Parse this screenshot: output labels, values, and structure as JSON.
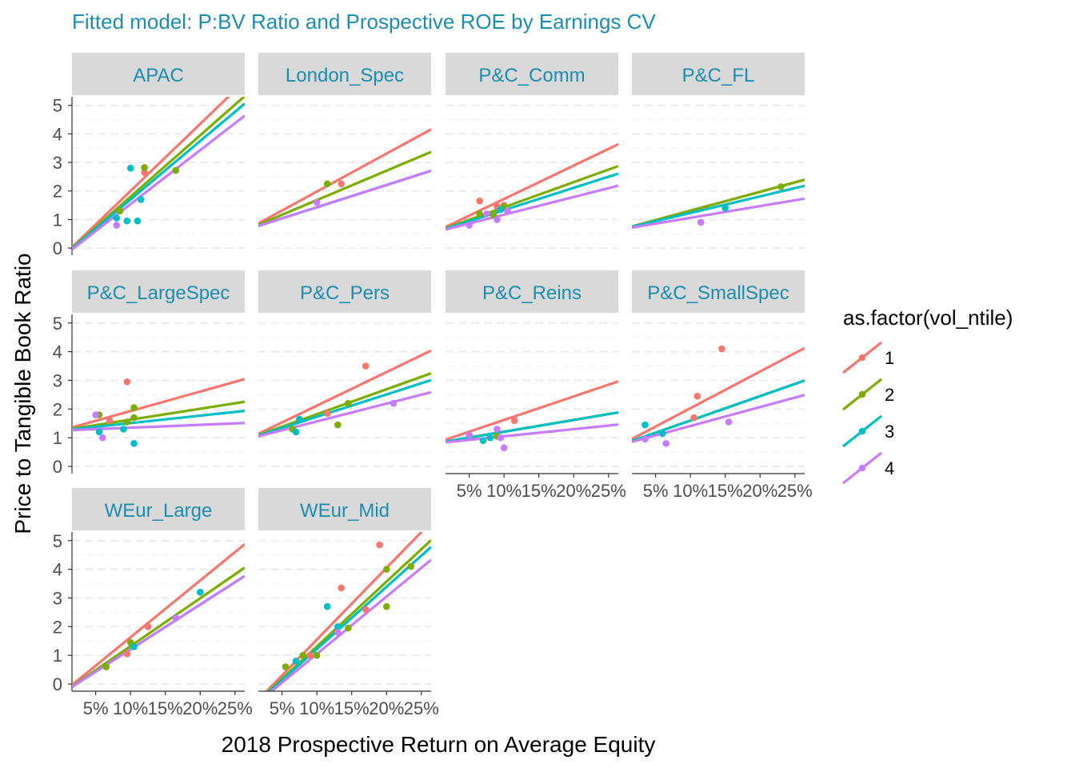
{
  "chart_data": {
    "type": "faceted line + scatter",
    "title": "Fitted model: P:BV Ratio and Prospective ROE by Earnings CV",
    "xlabel": "2018 Prospective Return on Average Equity",
    "ylabel": "Price to Tangible Book Ratio",
    "xlim": [
      0.016,
      0.264
    ],
    "ylim": [
      -0.25,
      5.3
    ],
    "x_ticks": [
      {
        "value": 0.05,
        "label": "5%"
      },
      {
        "value": 0.1,
        "label": "10%"
      },
      {
        "value": 0.15,
        "label": "15%"
      },
      {
        "value": 0.2,
        "label": "20%"
      },
      {
        "value": 0.25,
        "label": "25%"
      }
    ],
    "y_ticks": [
      {
        "value": 0,
        "label": "0"
      },
      {
        "value": 1,
        "label": "1"
      },
      {
        "value": 2,
        "label": "2"
      },
      {
        "value": 3,
        "label": "3"
      },
      {
        "value": 4,
        "label": "4"
      },
      {
        "value": 5,
        "label": "5"
      }
    ],
    "grid": true,
    "legend": {
      "title": "as.factor(vol_ntile)",
      "position": "right",
      "entries": [
        {
          "label": "1",
          "color": "#F8766D"
        },
        {
          "label": "2",
          "color": "#7CAE00"
        },
        {
          "label": "3",
          "color": "#00BFC4"
        },
        {
          "label": "4",
          "color": "#C77CFF"
        }
      ]
    },
    "panels": [
      {
        "name": "APAC",
        "lines": [
          [
            -0.35,
            23.5
          ],
          [
            -0.35,
            21.5
          ],
          [
            -0.35,
            20.5
          ],
          [
            -0.35,
            18.9
          ]
        ],
        "points": [
          [
            1,
            0.12,
            2.65
          ],
          [
            2,
            0.085,
            1.3
          ],
          [
            2,
            0.12,
            2.82
          ],
          [
            2,
            0.165,
            2.72
          ],
          [
            3,
            0.08,
            1.05
          ],
          [
            3,
            0.095,
            0.95
          ],
          [
            3,
            0.11,
            0.95
          ],
          [
            3,
            0.1,
            2.8
          ],
          [
            3,
            0.115,
            1.7
          ],
          [
            4,
            0.08,
            0.8
          ]
        ]
      },
      {
        "name": "London_Spec",
        "lines": [
          [
            0.65,
            13.3
          ],
          [
            0.65,
            10.3
          ],
          [
            0.65,
            7.8
          ],
          [
            0.65,
            7.8
          ]
        ],
        "points": [
          [
            1,
            0.135,
            2.25
          ],
          [
            2,
            0.115,
            2.25
          ],
          [
            4,
            0.1,
            1.6
          ]
        ]
      },
      {
        "name": "P&C_Comm",
        "lines": [
          [
            0.55,
            11.7
          ],
          [
            0.55,
            8.8
          ],
          [
            0.55,
            7.8
          ],
          [
            0.55,
            6.2
          ]
        ],
        "points": [
          [
            1,
            0.065,
            1.65
          ],
          [
            1,
            0.09,
            1.45
          ],
          [
            1,
            0.1,
            1.5
          ],
          [
            2,
            0.065,
            1.2
          ],
          [
            2,
            0.085,
            1.15
          ],
          [
            2,
            0.1,
            1.45
          ],
          [
            3,
            0.095,
            1.35
          ],
          [
            4,
            0.05,
            0.8
          ],
          [
            4,
            0.075,
            1.2
          ],
          [
            4,
            0.09,
            1.0
          ],
          [
            4,
            0.105,
            1.3
          ]
        ]
      },
      {
        "name": "P&C_FL",
        "lines": [
          [
            0.65,
            6.6
          ],
          [
            0.65,
            6.6
          ],
          [
            0.65,
            5.8
          ],
          [
            0.65,
            4.1
          ]
        ],
        "points": [
          [
            2,
            0.23,
            2.15
          ],
          [
            3,
            0.15,
            1.4
          ],
          [
            4,
            0.115,
            0.9
          ]
        ]
      },
      {
        "name": "P&C_LargeSpec",
        "lines": [
          [
            1.25,
            6.8
          ],
          [
            1.25,
            3.8
          ],
          [
            1.25,
            2.6
          ],
          [
            1.25,
            1.0
          ]
        ],
        "points": [
          [
            1,
            0.07,
            1.6
          ],
          [
            1,
            0.095,
            2.95
          ],
          [
            2,
            0.055,
            1.8
          ],
          [
            2,
            0.105,
            2.05
          ],
          [
            2,
            0.095,
            1.55
          ],
          [
            2,
            0.105,
            1.7
          ],
          [
            3,
            0.055,
            1.2
          ],
          [
            3,
            0.09,
            1.3
          ],
          [
            3,
            0.105,
            0.8
          ],
          [
            4,
            0.05,
            1.8
          ],
          [
            4,
            0.06,
            1.0
          ]
        ]
      },
      {
        "name": "P&C_Pers",
        "lines": [
          [
            0.95,
            11.7
          ],
          [
            0.95,
            8.7
          ],
          [
            0.95,
            7.8
          ],
          [
            0.95,
            6.2
          ]
        ],
        "points": [
          [
            1,
            0.115,
            1.85
          ],
          [
            1,
            0.17,
            3.5
          ],
          [
            2,
            0.065,
            1.3
          ],
          [
            2,
            0.13,
            1.45
          ],
          [
            2,
            0.145,
            2.2
          ],
          [
            3,
            0.07,
            1.2
          ],
          [
            3,
            0.075,
            1.65
          ],
          [
            4,
            0.21,
            2.2
          ]
        ]
      },
      {
        "name": "P&C_Reins",
        "lines": [
          [
            0.8,
            8.2
          ],
          [
            0.8,
            4.1
          ],
          [
            0.8,
            4.1
          ],
          [
            0.8,
            2.5
          ]
        ],
        "points": [
          [
            1,
            0.115,
            1.6
          ],
          [
            2,
            0.09,
            1.05
          ],
          [
            3,
            0.07,
            0.9
          ],
          [
            3,
            0.08,
            1.0
          ],
          [
            4,
            0.05,
            1.1
          ],
          [
            4,
            0.09,
            1.3
          ],
          [
            4,
            0.095,
            1.0
          ],
          [
            4,
            0.1,
            0.65
          ]
        ]
      },
      {
        "name": "P&C_SmallSpec",
        "lines": [
          [
            0.75,
            12.8
          ],
          [
            0.75,
            8.5
          ],
          [
            0.75,
            8.5
          ],
          [
            0.75,
            6.6
          ]
        ],
        "points": [
          [
            1,
            0.105,
            1.7
          ],
          [
            1,
            0.11,
            2.45
          ],
          [
            1,
            0.145,
            4.1
          ],
          [
            3,
            0.035,
            1.45
          ],
          [
            3,
            0.06,
            1.15
          ],
          [
            4,
            0.035,
            0.95
          ],
          [
            4,
            0.065,
            0.8
          ],
          [
            4,
            0.155,
            1.55
          ]
        ]
      },
      {
        "name": "WEur_Large",
        "lines": [
          [
            -0.35,
            19.8
          ],
          [
            -0.35,
            16.7
          ],
          [
            -0.35,
            15.6
          ],
          [
            -0.35,
            15.6
          ]
        ],
        "points": [
          [
            1,
            0.095,
            1.05
          ],
          [
            1,
            0.125,
            2.0
          ],
          [
            2,
            0.065,
            0.6
          ],
          [
            2,
            0.1,
            1.45
          ],
          [
            3,
            0.105,
            1.3
          ],
          [
            3,
            0.2,
            3.2
          ],
          [
            4,
            0.165,
            2.3
          ]
        ]
      },
      {
        "name": "WEur_Mid",
        "lines": [
          [
            -0.95,
            25.0
          ],
          [
            -0.95,
            22.6
          ],
          [
            -0.95,
            21.7
          ],
          [
            -0.95,
            20.0
          ]
        ],
        "points": [
          [
            1,
            0.09,
            1.0
          ],
          [
            1,
            0.135,
            3.35
          ],
          [
            1,
            0.19,
            4.85
          ],
          [
            1,
            0.17,
            2.6
          ],
          [
            2,
            0.055,
            0.6
          ],
          [
            2,
            0.08,
            1.0
          ],
          [
            2,
            0.1,
            1.0
          ],
          [
            2,
            0.145,
            1.95
          ],
          [
            2,
            0.2,
            4.0
          ],
          [
            2,
            0.2,
            2.7
          ],
          [
            2,
            0.235,
            4.1
          ],
          [
            3,
            0.07,
            0.8
          ],
          [
            3,
            0.115,
            2.7
          ],
          [
            3,
            0.13,
            2.0
          ],
          [
            4,
            0.13,
            1.8
          ]
        ]
      }
    ]
  }
}
